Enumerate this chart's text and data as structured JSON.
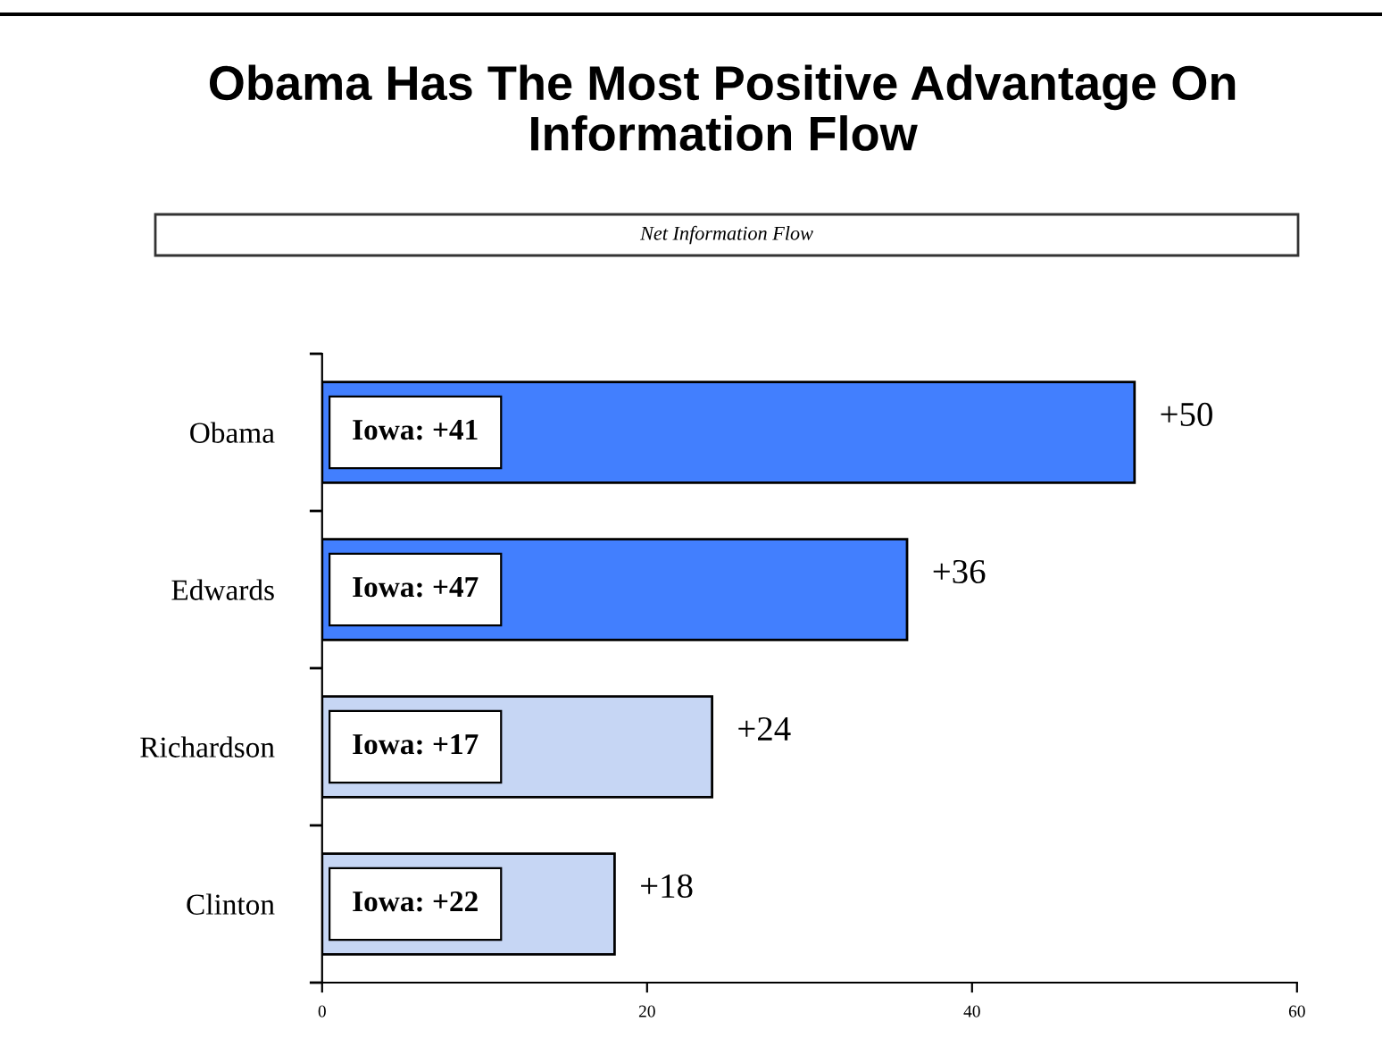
{
  "chart_data": {
    "type": "bar",
    "orientation": "horizontal",
    "title": "Obama Has The Most Positive Advantage On\nInformation Flow",
    "subtitle": "Net Information Flow",
    "categories": [
      "Obama",
      "Edwards",
      "Richardson",
      "Clinton"
    ],
    "values": [
      50,
      36,
      24,
      18
    ],
    "colors": [
      "#427ffe",
      "#427ffe",
      "#c6d6f4",
      "#c6d6f4"
    ],
    "value_labels": [
      "+50",
      "+36",
      "+24",
      "+18"
    ],
    "xlim": [
      0,
      60
    ],
    "xticks": [
      0,
      20,
      40,
      60
    ],
    "grid": false,
    "legend": false,
    "annotations": [
      "Iowa: +41",
      "Iowa: +47",
      "Iowa: +17",
      "Iowa: +22"
    ]
  }
}
